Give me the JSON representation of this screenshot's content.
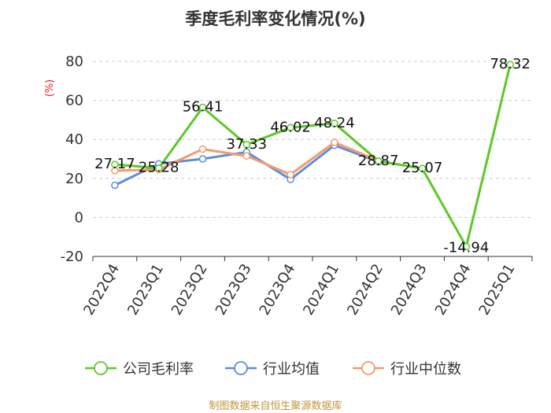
{
  "chart_data": {
    "type": "line",
    "title": "季度毛利率变化情况(%)",
    "ylabel": "(%)",
    "categories": [
      "2022Q4",
      "2023Q1",
      "2023Q2",
      "2023Q3",
      "2023Q4",
      "2024Q1",
      "2024Q2",
      "2024Q3",
      "2024Q4",
      "2025Q1"
    ],
    "ylim": [
      -20,
      80
    ],
    "yticks": [
      -20,
      0,
      20,
      40,
      60,
      80
    ],
    "grid": true,
    "legend_position": "bottom",
    "series": [
      {
        "name": "公司毛利率",
        "color": "#5cc828",
        "values": [
          27.17,
          25.28,
          56.41,
          37.33,
          46.02,
          48.24,
          28.87,
          25.07,
          -14.94,
          78.32
        ],
        "labels": [
          "27.17",
          "25.28",
          "56.41",
          "37.33",
          "46.02",
          "48.24",
          "28.87",
          "25.07",
          "-14.94",
          "78.32"
        ]
      },
      {
        "name": "行业均值",
        "color": "#5b8ee0",
        "values": [
          16.5,
          27.5,
          30.0,
          33.5,
          19.5,
          37.0,
          28.5,
          null,
          null,
          null
        ]
      },
      {
        "name": "行业中位数",
        "color": "#f59a6a",
        "values": [
          24.0,
          24.5,
          35.0,
          31.5,
          22.0,
          38.5,
          29.0,
          null,
          null,
          null
        ]
      }
    ]
  },
  "source": "制图数据来自恒生聚源数据库"
}
